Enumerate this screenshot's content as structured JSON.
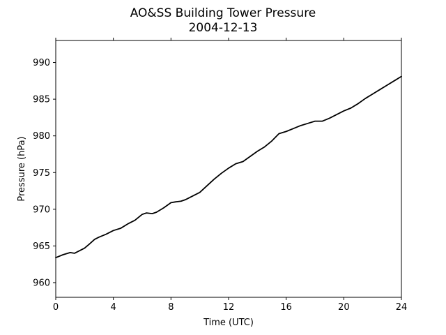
{
  "chart_data": {
    "type": "line",
    "title": "AO&SS Building Tower Pressure",
    "subtitle": "2004-12-13",
    "xlabel": "Time (UTC)",
    "ylabel": "Pressure (hPa)",
    "xlim": [
      0,
      24
    ],
    "ylim": [
      958,
      993
    ],
    "xticks": [
      0,
      4,
      8,
      12,
      16,
      20,
      24
    ],
    "yticks": [
      960,
      965,
      970,
      975,
      980,
      985,
      990
    ],
    "grid": false,
    "line_color": "#000000",
    "series": [
      {
        "x": [
          0,
          0.5,
          1.0,
          1.3,
          1.5,
          2.0,
          2.3,
          2.7,
          3.0,
          3.5,
          4.0,
          4.5,
          5.0,
          5.5,
          6.0,
          6.3,
          6.7,
          7.0,
          7.5,
          8.0,
          8.3,
          8.7,
          9.0,
          9.5,
          10.0,
          10.5,
          11.0,
          11.5,
          12.0,
          12.5,
          13.0,
          13.5,
          14.0,
          14.5,
          15.0,
          15.5,
          16.0,
          16.5,
          17.0,
          17.5,
          18.0,
          18.5,
          19.0,
          19.5,
          20.0,
          20.5,
          21.0,
          21.5,
          22.0,
          22.5,
          23.0,
          23.5,
          24.0
        ],
        "y": [
          963.4,
          963.8,
          964.1,
          964.0,
          964.2,
          964.7,
          965.2,
          965.9,
          966.2,
          966.6,
          967.1,
          967.4,
          968.0,
          968.5,
          969.3,
          969.5,
          969.4,
          969.6,
          970.2,
          970.9,
          971.0,
          971.1,
          971.3,
          971.8,
          972.3,
          973.2,
          974.1,
          974.9,
          975.6,
          976.2,
          976.5,
          977.2,
          977.9,
          978.5,
          979.3,
          980.3,
          980.6,
          981.0,
          981.4,
          981.7,
          982.0,
          982.0,
          982.4,
          982.9,
          983.4,
          983.8,
          984.4,
          985.1,
          985.7,
          986.3,
          986.9,
          987.5,
          988.1
        ]
      }
    ]
  }
}
